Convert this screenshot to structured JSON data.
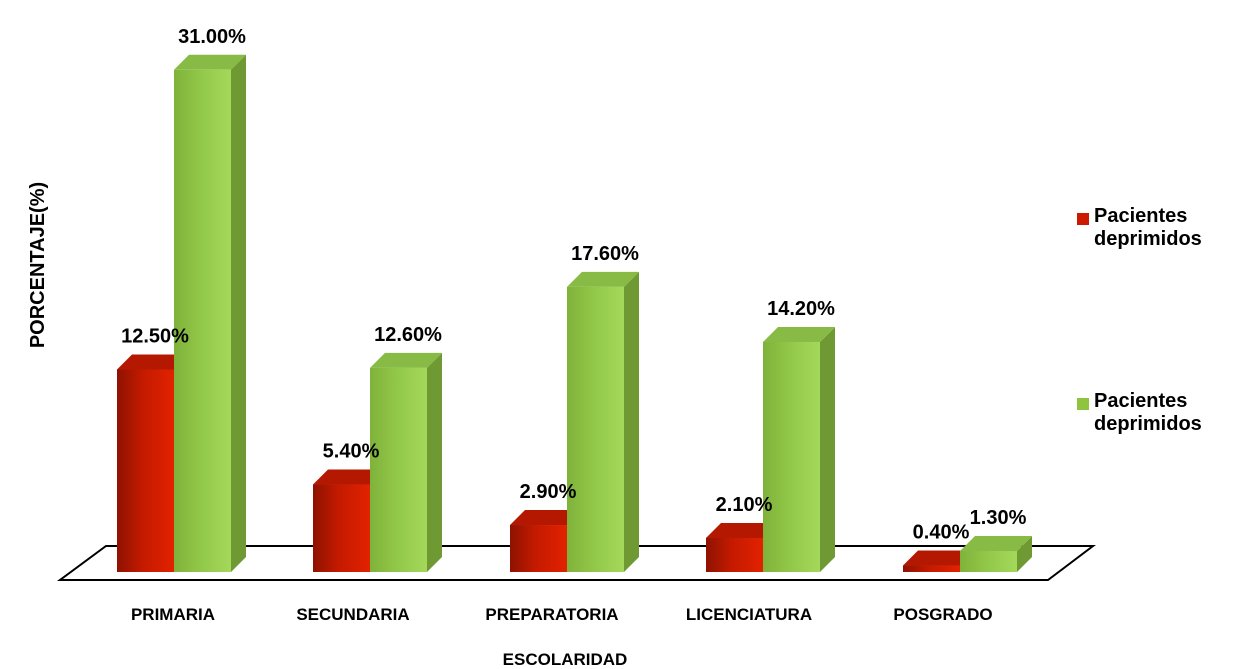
{
  "chart_data": {
    "type": "bar",
    "ylabel": "PORCENTAJE(%)",
    "xlabel": "ESCOLARIDAD",
    "categories": [
      "PRIMARIA",
      "SECUNDARIA",
      "PREPARATORIA",
      "LICENCIATURA",
      "POSGRADO"
    ],
    "series": [
      {
        "name": "Pacientes deprimidos",
        "color": "#cc1a00",
        "values": [
          12.5,
          5.4,
          2.9,
          2.1,
          0.4
        ],
        "labels": [
          "12.50%",
          "5.40%",
          "2.90%",
          "2.10%",
          "0.40%"
        ]
      },
      {
        "name": "Pacientes deprimidos",
        "color": "#8fc43f",
        "values": [
          31.0,
          12.6,
          17.6,
          14.2,
          1.3
        ],
        "labels": [
          "31.00%",
          "12.60%",
          "17.60%",
          "14.20%",
          "1.30%"
        ]
      }
    ],
    "ylim": [
      0,
      31
    ],
    "grid": false,
    "legend_position": "right"
  }
}
